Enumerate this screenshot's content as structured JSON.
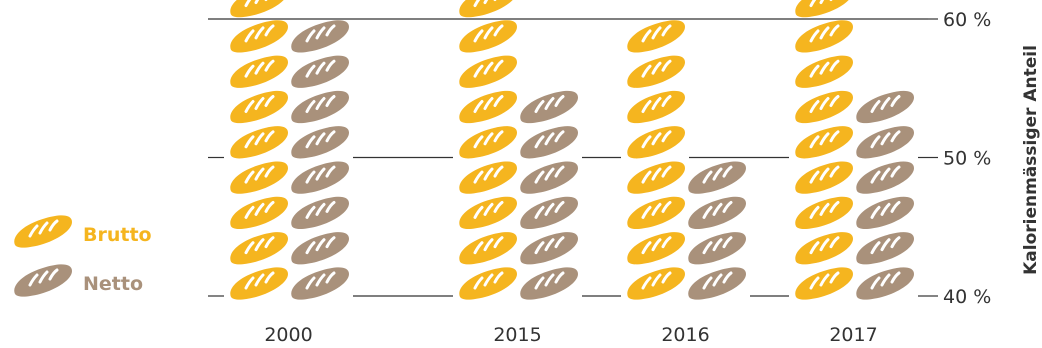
{
  "chart_data": {
    "type": "bar",
    "categories": [
      "2000",
      "2015",
      "2016",
      "2017"
    ],
    "series": [
      {
        "name": "Brutto",
        "values": [
          59.6,
          59.6,
          57.0,
          59.6
        ],
        "color": "#F5B51F"
      },
      {
        "name": "Netto",
        "values": [
          57.0,
          52.0,
          47.0,
          52.0
        ],
        "color": "#A9917B"
      }
    ],
    "ylabel": "Kalorienmässiger Anteil",
    "ylim": [
      40,
      60
    ],
    "yticks": [
      40,
      50,
      60
    ],
    "ytick_labels": [
      "40 %",
      "50 %",
      "60 %"
    ],
    "icon": "bread-loaf-icon",
    "legend_position": "left",
    "grid": true
  }
}
